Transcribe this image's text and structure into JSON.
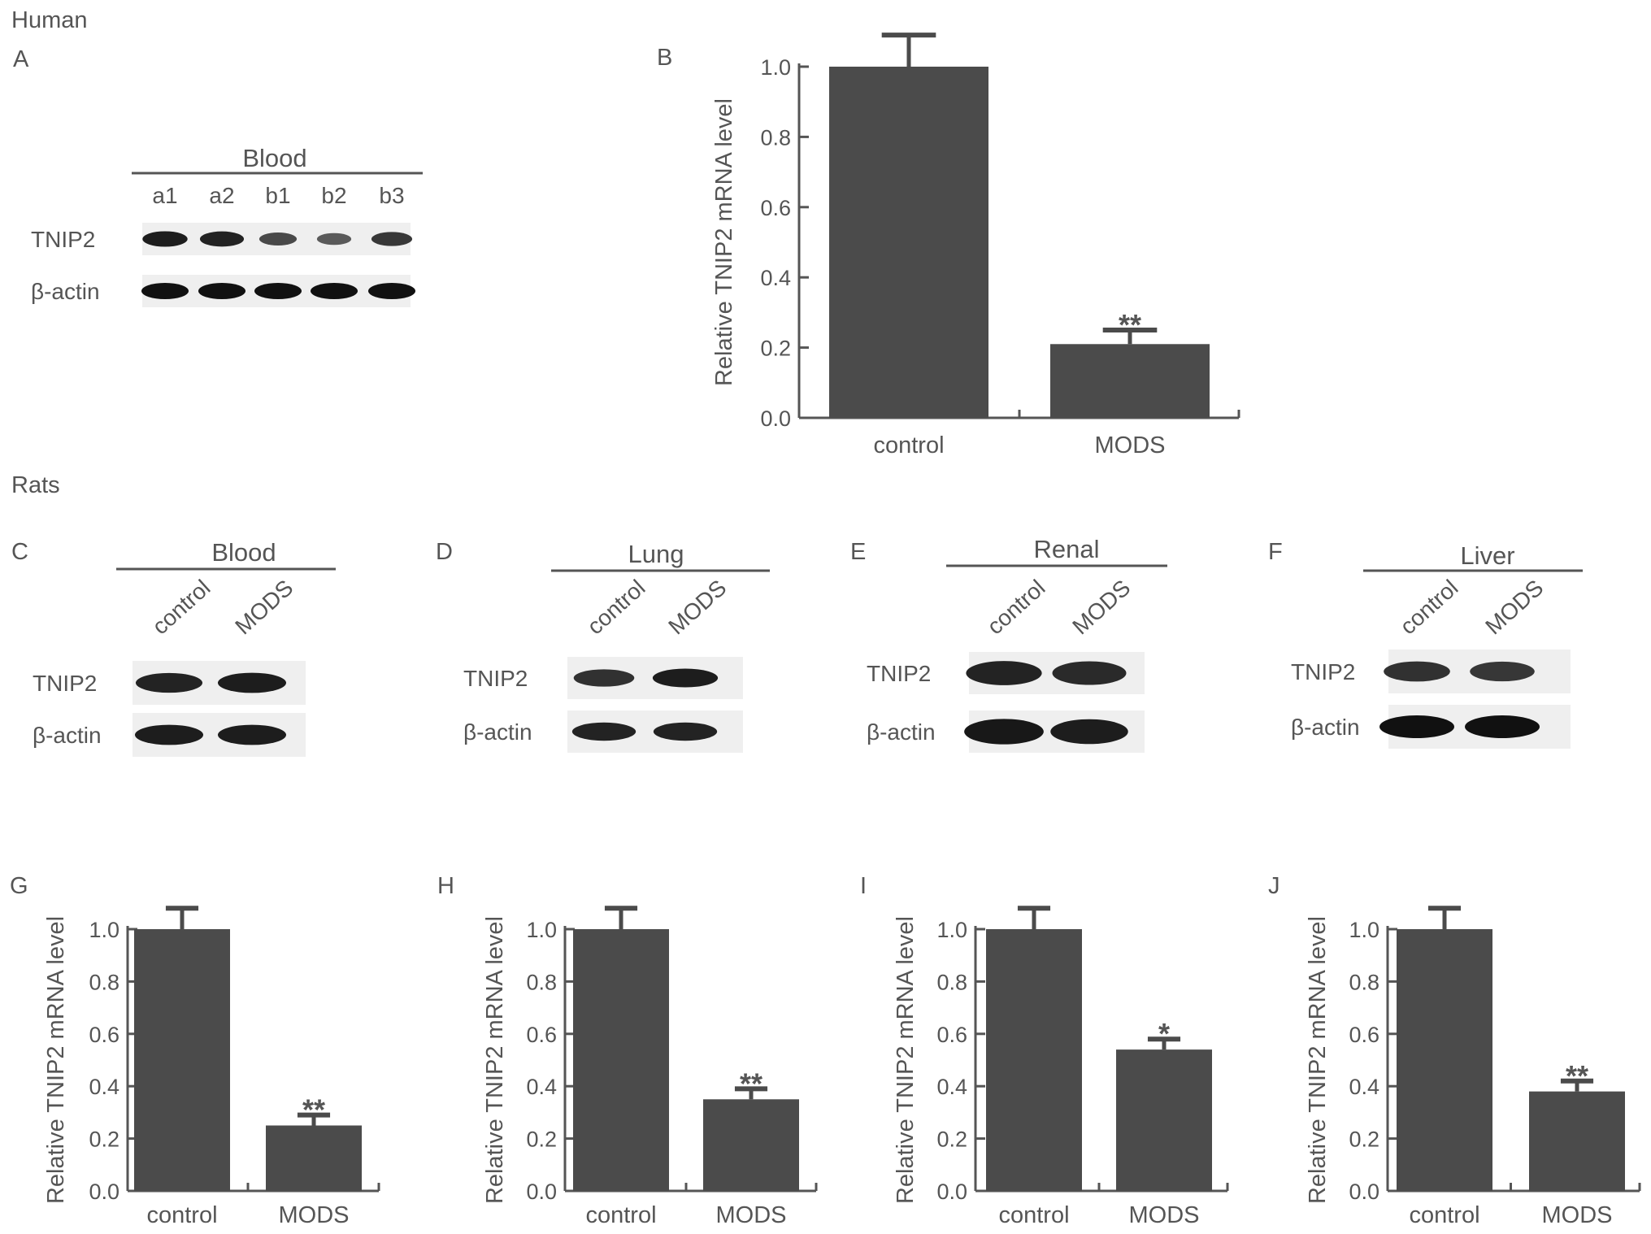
{
  "sections": {
    "human": "Human",
    "rats": "Rats"
  },
  "colors": {
    "bar": "#4b4b4b",
    "axis": "#555555",
    "text": "#555555",
    "band": "#111111",
    "blot_bg": "#efefef"
  },
  "blots": [
    {
      "id": "A",
      "letter": "A",
      "tissue": "Blood",
      "lanes": [
        "a1",
        "a2",
        "b1",
        "b2",
        "b3"
      ],
      "lanes_rotated": false,
      "rows": [
        {
          "label": "TNIP2",
          "band_strength": [
            0.9,
            0.85,
            0.55,
            0.4,
            0.7
          ]
        },
        {
          "label": "β-actin",
          "band_strength": [
            1.0,
            1.0,
            1.0,
            1.0,
            1.0
          ]
        }
      ]
    },
    {
      "id": "C",
      "letter": "C",
      "tissue": "Blood",
      "lanes": [
        "control",
        "MODS"
      ],
      "lanes_rotated": true,
      "rows": [
        {
          "label": "TNIP2",
          "band_strength": [
            0.85,
            0.9
          ]
        },
        {
          "label": "β-actin",
          "band_strength": [
            0.9,
            0.9
          ]
        }
      ]
    },
    {
      "id": "D",
      "letter": "D",
      "tissue": "Lung",
      "lanes": [
        "control",
        "MODS"
      ],
      "lanes_rotated": true,
      "rows": [
        {
          "label": "TNIP2",
          "band_strength": [
            0.75,
            0.9
          ]
        },
        {
          "label": "β-actin",
          "band_strength": [
            0.85,
            0.85
          ]
        }
      ]
    },
    {
      "id": "E",
      "letter": "E",
      "tissue": "Renal",
      "lanes": [
        "control",
        "MODS"
      ],
      "lanes_rotated": true,
      "rows": [
        {
          "label": "TNIP2",
          "band_strength": [
            0.85,
            0.8
          ]
        },
        {
          "label": "β-actin",
          "band_strength": [
            0.95,
            0.9
          ]
        }
      ]
    },
    {
      "id": "F",
      "letter": "F",
      "tissue": "Liver",
      "lanes": [
        "control",
        "MODS"
      ],
      "lanes_rotated": true,
      "rows": [
        {
          "label": "TNIP2",
          "band_strength": [
            0.75,
            0.7
          ]
        },
        {
          "label": "β-actin",
          "band_strength": [
            1.0,
            1.0
          ]
        }
      ]
    }
  ],
  "chart_data": [
    {
      "id": "B",
      "letter": "B",
      "type": "bar",
      "categories": [
        "control",
        "MODS"
      ],
      "values": [
        1.0,
        0.21
      ],
      "errors": [
        0.09,
        0.04
      ],
      "significance": [
        "",
        "**"
      ],
      "ylabel": "Relative TNIP2 mRNA level",
      "ylim": [
        0,
        1.0
      ],
      "yticks": [
        "0.0",
        "0.2",
        "0.4",
        "0.6",
        "0.8",
        "1.0"
      ],
      "grid": false
    },
    {
      "id": "G",
      "letter": "G",
      "type": "bar",
      "categories": [
        "control",
        "MODS"
      ],
      "values": [
        1.0,
        0.25
      ],
      "errors": [
        0.08,
        0.04
      ],
      "significance": [
        "",
        "**"
      ],
      "ylabel": "Relative TNIP2 mRNA level",
      "ylim": [
        0,
        1.0
      ],
      "yticks": [
        "0.0",
        "0.2",
        "0.4",
        "0.6",
        "0.8",
        "1.0"
      ],
      "grid": false
    },
    {
      "id": "H",
      "letter": "H",
      "type": "bar",
      "categories": [
        "control",
        "MODS"
      ],
      "values": [
        1.0,
        0.35
      ],
      "errors": [
        0.08,
        0.04
      ],
      "significance": [
        "",
        "**"
      ],
      "ylabel": "Relative TNIP2 mRNA level",
      "ylim": [
        0,
        1.0
      ],
      "yticks": [
        "0.0",
        "0.2",
        "0.4",
        "0.6",
        "0.8",
        "1.0"
      ],
      "grid": false
    },
    {
      "id": "I",
      "letter": "I",
      "type": "bar",
      "categories": [
        "control",
        "MODS"
      ],
      "values": [
        1.0,
        0.54
      ],
      "errors": [
        0.08,
        0.04
      ],
      "significance": [
        "",
        "*"
      ],
      "ylabel": "Relative TNIP2 mRNA level",
      "ylim": [
        0,
        1.0
      ],
      "yticks": [
        "0.0",
        "0.2",
        "0.4",
        "0.6",
        "0.8",
        "1.0"
      ],
      "grid": false
    },
    {
      "id": "J",
      "letter": "J",
      "type": "bar",
      "categories": [
        "control",
        "MODS"
      ],
      "values": [
        1.0,
        0.38
      ],
      "errors": [
        0.08,
        0.04
      ],
      "significance": [
        "",
        "**"
      ],
      "ylabel": "Relative TNIP2 mRNA level",
      "ylim": [
        0,
        1.0
      ],
      "yticks": [
        "0.0",
        "0.2",
        "0.4",
        "0.6",
        "0.8",
        "1.0"
      ],
      "grid": false
    }
  ]
}
